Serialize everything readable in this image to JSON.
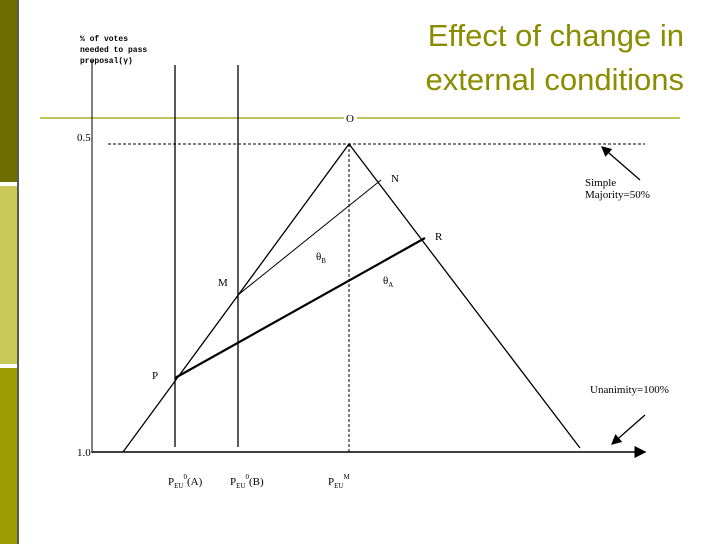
{
  "header": {
    "title_lines": [
      "Effect of change in",
      "external conditions"
    ]
  },
  "diagram": {
    "y_axis_label": [
      "% of votes",
      "needed to pass",
      "proposal(γ)"
    ],
    "y_labels": [
      "0.5",
      "1.0"
    ],
    "points": {
      "O": "O",
      "N": "N",
      "R": "R",
      "M": "M",
      "P": "P"
    },
    "angles": [
      {
        "base": "θ",
        "sub": "B"
      },
      {
        "base": "θ",
        "sub": "A"
      }
    ],
    "annotations": [
      {
        "lines": [
          "Simple",
          "Majority=50%"
        ]
      },
      {
        "lines": [
          "Unanimity=100%"
        ]
      }
    ],
    "x_labels": [
      {
        "base": "P",
        "sub": "EU",
        "sup": "0",
        "suffix": "(A)"
      },
      {
        "base": "P",
        "sub": "EU",
        "sup": "0",
        "suffix": "(B)"
      },
      {
        "base": "P",
        "sub": "EU",
        "sup": "M",
        "suffix": ""
      }
    ]
  }
}
